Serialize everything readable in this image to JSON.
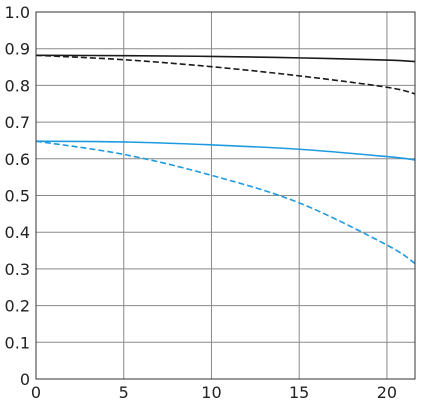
{
  "chart_data": {
    "type": "line",
    "title": "",
    "xlabel": "",
    "ylabel": "",
    "xlim": [
      0,
      21.6
    ],
    "ylim": [
      0,
      1.0
    ],
    "xticks": [
      0,
      5,
      10,
      15,
      20
    ],
    "xtick_labels": [
      "0",
      "5",
      "10",
      "15",
      "20"
    ],
    "yticks": [
      0,
      0.1,
      0.2,
      0.3,
      0.4,
      0.5,
      0.6,
      0.7,
      0.8,
      0.9,
      1.0
    ],
    "ytick_labels": [
      "0",
      "0.1",
      "0.2",
      "0.3",
      "0.4",
      "0.5",
      "0.6",
      "0.7",
      "0.8",
      "0.9",
      "1.0"
    ],
    "grid": true,
    "legend": "none",
    "series": [
      {
        "color": "#1a1a1a",
        "dash": "solid",
        "x": [
          0,
          5,
          10,
          15,
          20,
          21.6
        ],
        "y": [
          0.882,
          0.881,
          0.879,
          0.875,
          0.869,
          0.865
        ]
      },
      {
        "color": "#1a1a1a",
        "dash": "dashed",
        "x": [
          0,
          5,
          10,
          15,
          20,
          21.6
        ],
        "y": [
          0.882,
          0.87,
          0.851,
          0.826,
          0.795,
          0.777
        ]
      },
      {
        "color": "#1e9be0",
        "dash": "solid",
        "x": [
          0,
          5,
          10,
          15,
          20,
          21.6
        ],
        "y": [
          0.648,
          0.646,
          0.638,
          0.626,
          0.606,
          0.597
        ]
      },
      {
        "color": "#1e9be0",
        "dash": "dashed",
        "x": [
          0,
          5,
          10,
          15,
          20,
          21.6
        ],
        "y": [
          0.648,
          0.612,
          0.555,
          0.48,
          0.365,
          0.315
        ]
      }
    ]
  }
}
